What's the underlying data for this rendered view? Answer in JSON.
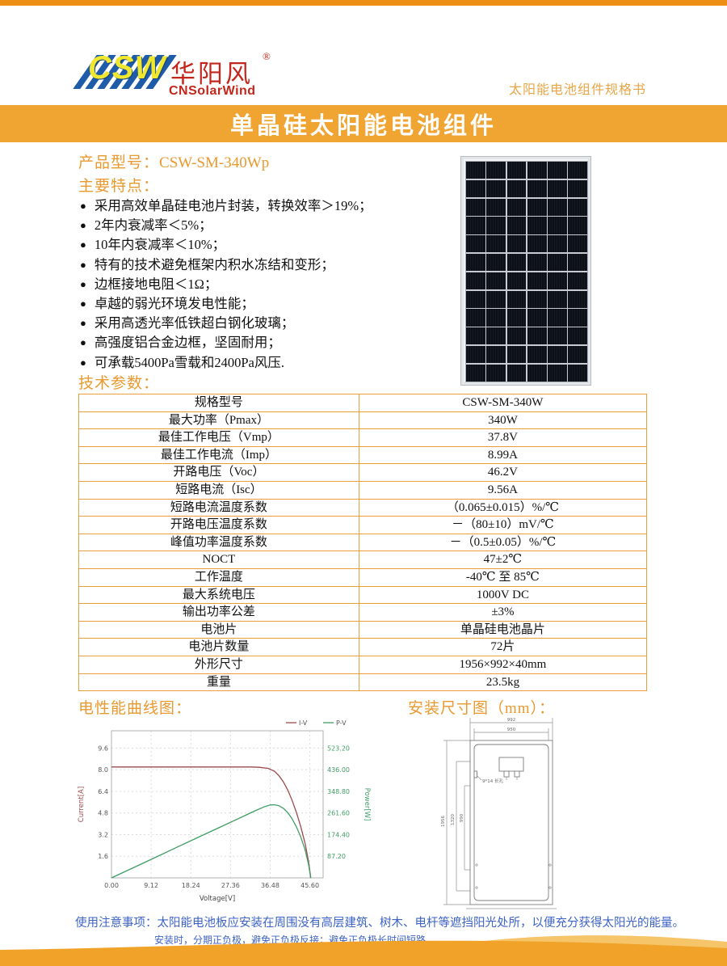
{
  "header": {
    "doc_type": "太阳能电池组件规格书",
    "banner_title": "单晶硅太阳能电池组件"
  },
  "logo": {
    "acronym": "CSW",
    "brand_cn": "华阳风",
    "reg": "®",
    "brand_en": "CNSolarWind"
  },
  "product_model": {
    "label": "产品型号：",
    "value": "CSW-SM-340Wp"
  },
  "features": {
    "heading": "主要特点：",
    "bullet_char": "●",
    "items": [
      "采用高效单晶硅电池片封装，转换效率＞19%；",
      "2年内衰减率＜5%；",
      "10年内衰减率＜10%；",
      "特有的技术避免框架内积水冻结和变形；",
      "边框接地电阻＜1Ω；",
      "卓越的弱光环境发电性能；",
      "采用高透光率低铁超白钢化玻璃；",
      "高强度铝合金边框，坚固耐用；",
      "可承载5400Pa雪载和2400Pa风压."
    ]
  },
  "specs": {
    "heading": "技术参数：",
    "rows": [
      {
        "label": "规格型号",
        "value": "CSW-SM-340W"
      },
      {
        "label": "最大功率（Pmax）",
        "value": "340W"
      },
      {
        "label": "最佳工作电压（Vmp）",
        "value": "37.8V"
      },
      {
        "label": "最佳工作电流（Imp）",
        "value": "8.99A"
      },
      {
        "label": "开路电压（Voc）",
        "value": "46.2V"
      },
      {
        "label": "短路电流（Isc）",
        "value": "9.56A"
      },
      {
        "label": "短路电流温度系数",
        "value": "（0.065±0.015）%/℃"
      },
      {
        "label": "开路电压温度系数",
        "value": "－（80±10）mV/℃"
      },
      {
        "label": "峰值功率温度系数",
        "value": "－（0.5±0.05）%/℃"
      },
      {
        "label": "NOCT",
        "value": "47±2℃"
      },
      {
        "label": "工作温度",
        "value": "-40℃ 至 85℃"
      },
      {
        "label": "最大系统电压",
        "value": "1000V DC"
      },
      {
        "label": "输出功率公差",
        "value": "±3%"
      },
      {
        "label": "电池片",
        "value": "单晶硅电池晶片"
      },
      {
        "label": "电池片数量",
        "value": "72片"
      },
      {
        "label": "外形尺寸",
        "value": "1956×992×40mm"
      },
      {
        "label": "重量",
        "value": "23.5kg"
      }
    ]
  },
  "curves": {
    "heading": "电性能曲线图："
  },
  "chart_data": {
    "type": "line",
    "xlabel": "Voltage[V]",
    "ylabel_left": "Current[A]",
    "ylabel_right": "Power[W]",
    "x_ticks": [
      0.0,
      9.12,
      18.24,
      27.36,
      36.48,
      45.6
    ],
    "y_left_ticks": [
      1.6,
      3.2,
      4.8,
      6.4,
      8.0,
      9.6
    ],
    "y_right_ticks": [
      87.2,
      174.4,
      261.6,
      348.8,
      436.0,
      523.2
    ],
    "xlim": [
      0,
      48.64
    ],
    "ylim_left": [
      0,
      10.88
    ],
    "ylim_right": [
      0,
      592.96
    ],
    "grid": true,
    "legend_position": "top-right",
    "series": [
      {
        "name": "I-V",
        "color": "#9C4B4B",
        "axis": "left",
        "points": [
          [
            0,
            8.2
          ],
          [
            10,
            8.2
          ],
          [
            20,
            8.2
          ],
          [
            28,
            8.2
          ],
          [
            32,
            8.2
          ],
          [
            34,
            8.18
          ],
          [
            36,
            8.1
          ],
          [
            37.5,
            7.88
          ],
          [
            38.5,
            7.55
          ],
          [
            39.5,
            7.1
          ],
          [
            40.5,
            6.5
          ],
          [
            41.5,
            5.75
          ],
          [
            42.5,
            4.85
          ],
          [
            43.5,
            3.8
          ],
          [
            44.5,
            2.55
          ],
          [
            45.3,
            1.2
          ],
          [
            45.8,
            0
          ]
        ]
      },
      {
        "name": "P-V",
        "color": "#419D64",
        "axis": "left",
        "points": [
          [
            0,
            0
          ],
          [
            5,
            0.75
          ],
          [
            10,
            1.5
          ],
          [
            15,
            2.26
          ],
          [
            20,
            3.01
          ],
          [
            25,
            3.76
          ],
          [
            30,
            4.51
          ],
          [
            33,
            4.96
          ],
          [
            35,
            5.24
          ],
          [
            36.5,
            5.39
          ],
          [
            37.5,
            5.41
          ],
          [
            38.5,
            5.33
          ],
          [
            39.5,
            5.15
          ],
          [
            40.5,
            4.83
          ],
          [
            41.5,
            4.38
          ],
          [
            42.5,
            3.78
          ],
          [
            43.5,
            3.03
          ],
          [
            44.5,
            2.08
          ],
          [
            45.3,
            1.0
          ],
          [
            45.8,
            0
          ]
        ]
      }
    ]
  },
  "install": {
    "heading": "安装尺寸图（mm）：",
    "dims": {
      "w_outer": "992",
      "w_inner": "950",
      "h_outer": "1956",
      "h_mid": "1320",
      "h_inner": "990",
      "hole_label": "9*14 长孔"
    }
  },
  "notice": {
    "label": "使用注意事项：",
    "line1": "太阳能电池板应安装在周围没有高层建筑、树木、电杆等遮挡阳光处所，以便充分获得太阳光的能量。",
    "line2": "安装时，分期正负极，避免正负极反接；避免正负极长时间短路。"
  },
  "colors": {
    "banner_orange": "#F0A431",
    "heading_orange": "#E8992F",
    "table_border_orange": "#E9A03C",
    "note_blue": "#3C63C5",
    "logo_blue": "#1E5BA9",
    "logo_red": "#C3261B",
    "logo_yellow": "#EFE82E",
    "iv_curve": "#9C4B4B",
    "pv_curve": "#419D64",
    "wave_orange": "#F0A229"
  }
}
